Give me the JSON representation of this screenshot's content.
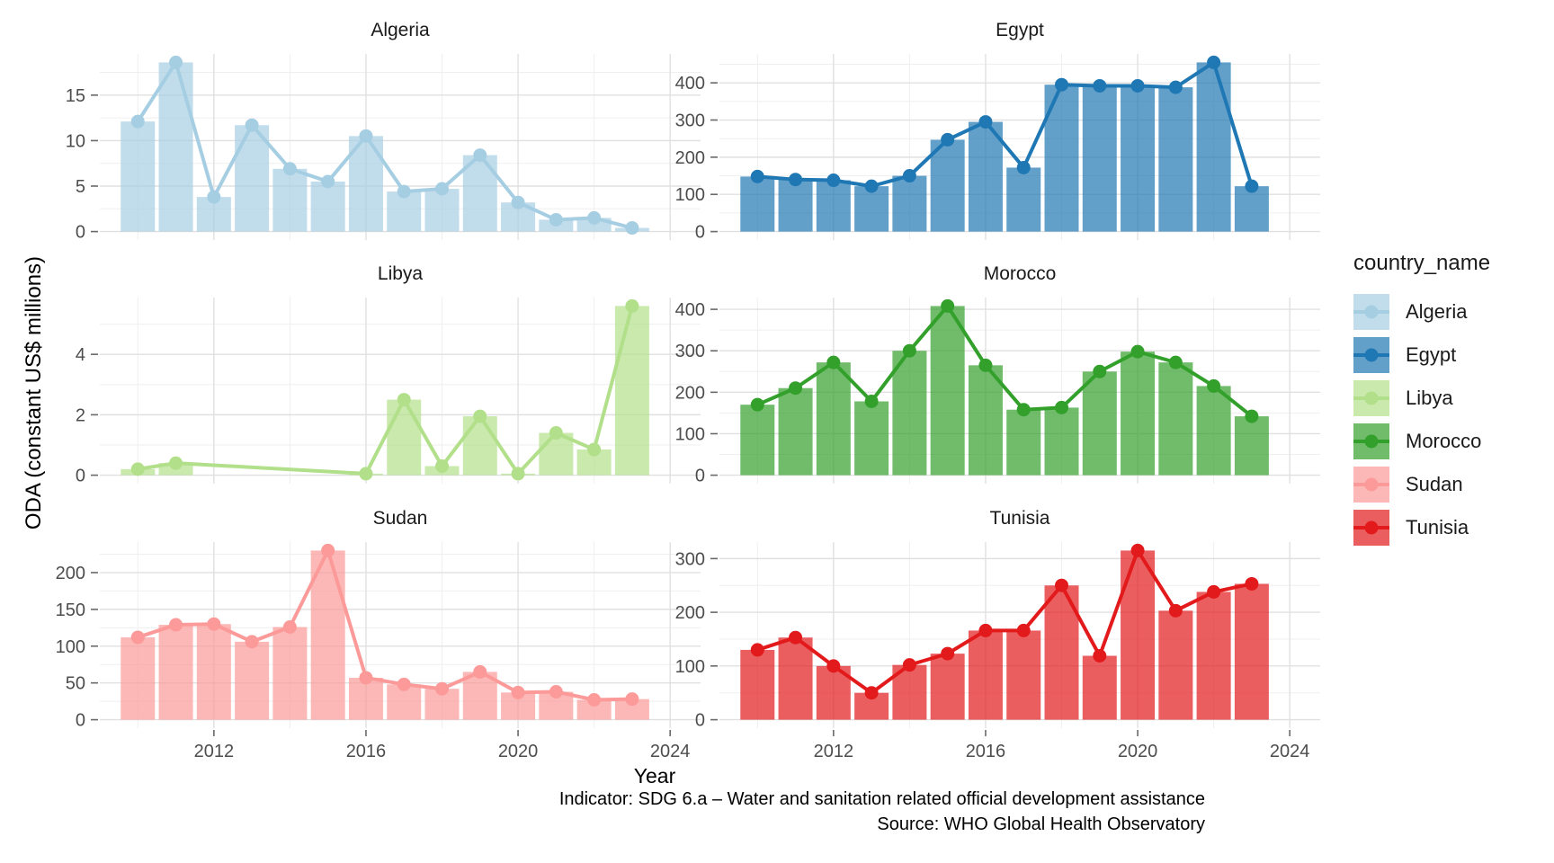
{
  "figure": {
    "ylabel": "ODA (constant US$ millions)",
    "xlabel": "Year",
    "caption_line1": "Indicator: SDG 6.a – Water and sanitation related official development assistance",
    "caption_line2": "Source: WHO Global Health Observatory",
    "legend_title": "country_name"
  },
  "chart_data": {
    "type": "bar",
    "subtype": "faceted bar chart with overlaid line and points (small multiples, 3 rows x 2 cols)",
    "title": "",
    "xlabel": "Year",
    "ylabel": "ODA (constant US$ millions)",
    "grid": true,
    "legend_position": "right",
    "legend_title": "country_name",
    "years": [
      2010,
      2011,
      2012,
      2013,
      2014,
      2015,
      2016,
      2017,
      2018,
      2019,
      2020,
      2021,
      2022,
      2023
    ],
    "x_ticks": [
      2012,
      2016,
      2020,
      2024
    ],
    "x_range": [
      2009,
      2024.8
    ],
    "facets": [
      {
        "name": "Algeria",
        "color": "#A6CEE3",
        "y_ticks": [
          0,
          5,
          10,
          15
        ],
        "values": [
          12.1,
          18.6,
          3.8,
          11.7,
          6.9,
          5.5,
          10.5,
          4.4,
          4.7,
          8.4,
          3.2,
          1.3,
          1.5,
          0.4
        ]
      },
      {
        "name": "Egypt",
        "color": "#1F78B4",
        "y_ticks": [
          0,
          100,
          200,
          300,
          400
        ],
        "values": [
          148,
          140,
          138,
          122,
          150,
          247,
          295,
          172,
          395,
          392,
          392,
          388,
          455,
          122
        ]
      },
      {
        "name": "Libya",
        "color": "#B2DF8A",
        "y_ticks": [
          0,
          2,
          4
        ],
        "values": [
          0.2,
          0.4,
          null,
          null,
          null,
          null,
          0.05,
          2.5,
          0.3,
          1.95,
          0.05,
          1.4,
          0.85,
          5.6
        ]
      },
      {
        "name": "Morocco",
        "color": "#33A02C",
        "y_ticks": [
          0,
          100,
          200,
          300,
          400
        ],
        "values": [
          170,
          210,
          272,
          178,
          300,
          408,
          265,
          158,
          163,
          250,
          298,
          272,
          215,
          142
        ]
      },
      {
        "name": "Sudan",
        "color": "#FB9A99",
        "y_ticks": [
          0,
          50,
          100,
          150,
          200
        ],
        "values": [
          112,
          129,
          130,
          106,
          126,
          230,
          57,
          48,
          42,
          65,
          37,
          38,
          27,
          28
        ]
      },
      {
        "name": "Tunisia",
        "color": "#E31A1C",
        "y_ticks": [
          0,
          100,
          200,
          300
        ],
        "values": [
          130,
          153,
          100,
          50,
          102,
          123,
          166,
          166,
          250,
          119,
          315,
          203,
          238,
          253
        ]
      }
    ]
  }
}
